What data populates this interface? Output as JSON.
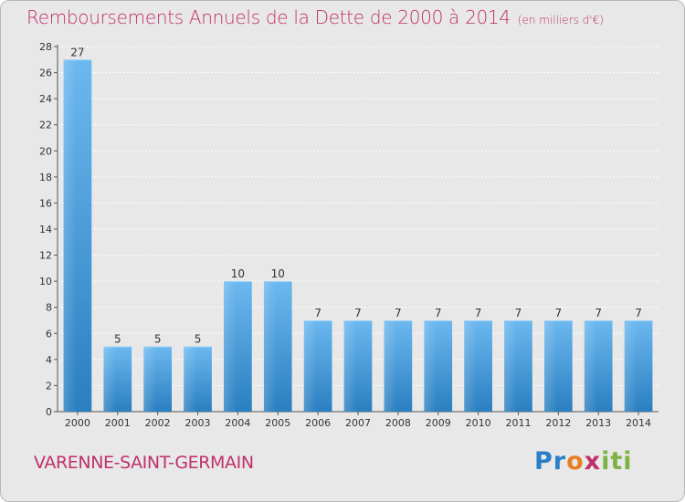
{
  "title": "Remboursements Annuels de la Dette de 2000 à 2014",
  "subtitle": "(en milliers d'€)",
  "commune": "VARENNE-SAINT-GERMAIN",
  "logo": {
    "part1": "Pr",
    "part2": "o",
    "part3": "x",
    "part4": "iti"
  },
  "colors": {
    "accent": "#c0306a",
    "bar_light": "#6cb8f0",
    "bar_dark": "#2a7fc0",
    "background": "#e8e8e8"
  },
  "chart_data": {
    "type": "bar",
    "categories": [
      "2000",
      "2001",
      "2002",
      "2003",
      "2004",
      "2005",
      "2006",
      "2007",
      "2008",
      "2009",
      "2010",
      "2011",
      "2012",
      "2013",
      "2014"
    ],
    "values": [
      27,
      5,
      5,
      5,
      10,
      10,
      7,
      7,
      7,
      7,
      7,
      7,
      7,
      7,
      7
    ],
    "data_labels": [
      "27",
      "5",
      "5",
      "5",
      "10",
      "10",
      "7",
      "7",
      "7",
      "7",
      "7",
      "7",
      "7",
      "7",
      "7"
    ],
    "title": "Remboursements Annuels de la Dette de 2000 à 2014",
    "ylim": [
      0,
      28
    ],
    "yticks": [
      0,
      2,
      4,
      6,
      8,
      10,
      12,
      14,
      16,
      18,
      20,
      22,
      24,
      26,
      28
    ],
    "grid": true
  }
}
